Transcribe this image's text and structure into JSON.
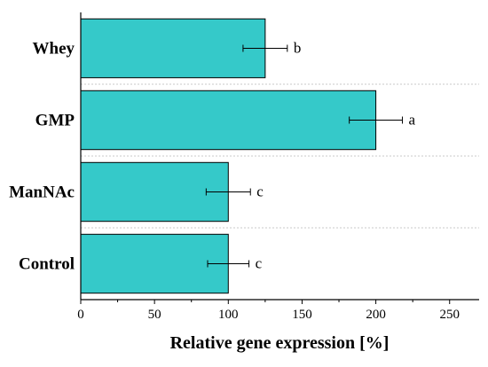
{
  "chart_data": {
    "type": "bar",
    "orientation": "horizontal",
    "categories": [
      "Whey",
      "GMP",
      "ManNAc",
      "Control"
    ],
    "values": [
      125,
      200,
      100,
      100
    ],
    "errors": [
      15,
      18,
      15,
      14
    ],
    "significance": [
      "b",
      "a",
      "c",
      "c"
    ],
    "xlabel": "Relative gene expression [%]",
    "ylabel": "",
    "xlim": [
      0,
      270
    ],
    "xticks": [
      0,
      50,
      100,
      150,
      200,
      250
    ],
    "grid": "dashed horizontal separators between bars",
    "legend": "none",
    "bar_color": "#35C9C9"
  }
}
